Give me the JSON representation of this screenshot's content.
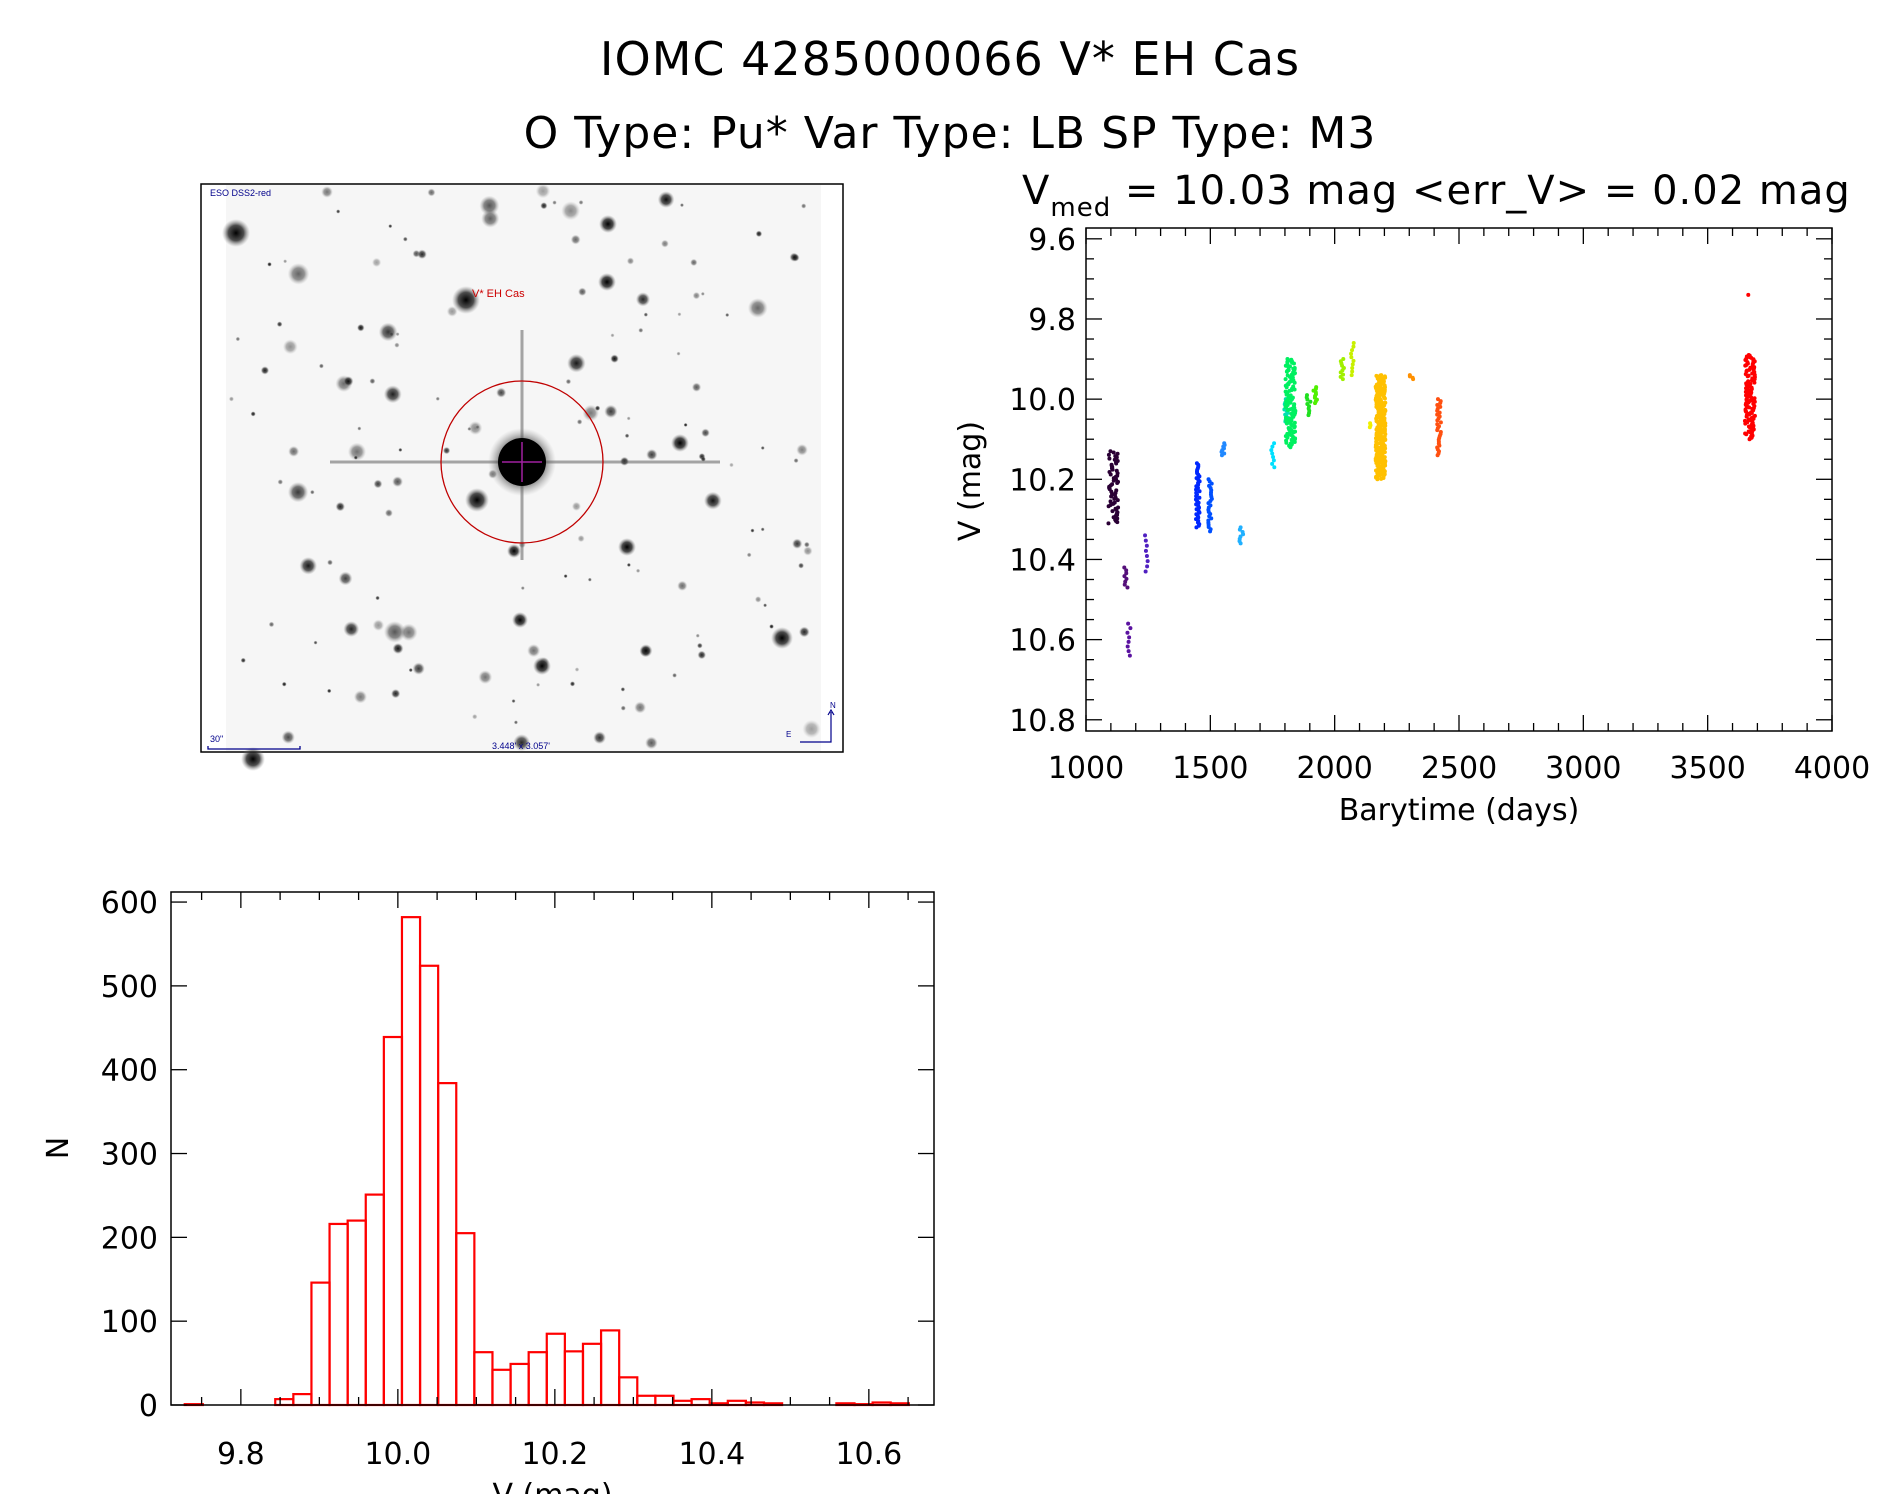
{
  "header": {
    "title_line1": "IOMC 4285000066    V* EH Cas",
    "title_line2": "O Type: Pu*   Var Type: LB   SP Type: M3"
  },
  "sky_image": {
    "survey_label": "ESO DSS2-red",
    "target_label": "V* EH Cas",
    "scale_bar_label": "30\"",
    "field_size_label": "3.448' x 3.057'",
    "north_label": "N",
    "east_label": "E",
    "label_color": "#00008b",
    "target_color": "#cc0000"
  },
  "chart_data": [
    {
      "type": "scatter",
      "title_parts": {
        "v": "V",
        "v_sub": "med",
        "rest": " = 10.03 mag <err_V> = 0.02 mag"
      },
      "xlabel": "Barytime (days)",
      "ylabel": "V (mag)",
      "xlim": [
        1000,
        4000
      ],
      "ylim": [
        10.828,
        9.573
      ],
      "y_inverted": true,
      "xticks": [
        1000,
        1500,
        2000,
        2500,
        3000,
        3500,
        4000
      ],
      "yticks": [
        "9.6",
        "9.8",
        "10.0",
        "10.2",
        "10.4",
        "10.6",
        "10.8"
      ],
      "grid": false,
      "color_by": "time (rainbow)",
      "clusters": [
        {
          "x": 1110,
          "ymin": 10.13,
          "ymax": 10.31,
          "n": 60,
          "color": "#2a0035"
        },
        {
          "x": 1162,
          "ymin": 10.42,
          "ymax": 10.47,
          "n": 8,
          "color": "#55107a"
        },
        {
          "x": 1173,
          "ymin": 10.56,
          "ymax": 10.64,
          "n": 8,
          "color": "#5a12a0"
        },
        {
          "x": 1245,
          "ymin": 10.34,
          "ymax": 10.43,
          "n": 8,
          "color": "#5020c0"
        },
        {
          "x": 1450,
          "ymin": 10.16,
          "ymax": 10.32,
          "n": 40,
          "color": "#0028ff"
        },
        {
          "x": 1500,
          "ymin": 10.2,
          "ymax": 10.33,
          "n": 25,
          "color": "#0050ff"
        },
        {
          "x": 1552,
          "ymin": 10.11,
          "ymax": 10.14,
          "n": 8,
          "color": "#2088ff"
        },
        {
          "x": 1625,
          "ymin": 10.32,
          "ymax": 10.36,
          "n": 8,
          "color": "#20b0ff"
        },
        {
          "x": 1750,
          "ymin": 10.11,
          "ymax": 10.17,
          "n": 8,
          "color": "#00e0ff"
        },
        {
          "x": 1805,
          "ymin": 10.0,
          "ymax": 10.06,
          "n": 15,
          "color": "#00e0b0"
        },
        {
          "x": 1822,
          "ymin": 9.9,
          "ymax": 10.12,
          "n": 120,
          "color": "#00f060"
        },
        {
          "x": 1895,
          "ymin": 9.99,
          "ymax": 10.04,
          "n": 10,
          "color": "#20e020"
        },
        {
          "x": 1922,
          "ymin": 9.97,
          "ymax": 10.01,
          "n": 10,
          "color": "#50f000"
        },
        {
          "x": 2032,
          "ymin": 9.9,
          "ymax": 9.95,
          "n": 10,
          "color": "#a0f000"
        },
        {
          "x": 2070,
          "ymin": 9.86,
          "ymax": 9.94,
          "n": 10,
          "color": "#c8f000"
        },
        {
          "x": 2140,
          "ymin": 10.06,
          "ymax": 10.07,
          "n": 3,
          "color": "#f0f000"
        },
        {
          "x": 2185,
          "ymin": 9.94,
          "ymax": 10.2,
          "n": 250,
          "color": "#ffc000"
        },
        {
          "x": 2310,
          "ymin": 9.94,
          "ymax": 9.95,
          "n": 4,
          "color": "#ff9000"
        },
        {
          "x": 2420,
          "ymin": 10.0,
          "ymax": 10.14,
          "n": 30,
          "color": "#ff5010"
        },
        {
          "x": 3668,
          "ymin": 9.74,
          "ymax": 9.74,
          "n": 1,
          "color": "#ff0000"
        },
        {
          "x": 3670,
          "ymin": 9.89,
          "ymax": 10.1,
          "n": 120,
          "color": "#ff0000"
        }
      ]
    },
    {
      "type": "bar",
      "subtype": "histogram",
      "xlabel": "V (mag)",
      "ylabel": "N",
      "xlim": [
        9.711,
        10.683
      ],
      "ylim": [
        0,
        612
      ],
      "xticks": [
        "9.8",
        "10.0",
        "10.2",
        "10.4",
        "10.6"
      ],
      "yticks": [
        "0",
        "100",
        "200",
        "300",
        "400",
        "500",
        "600"
      ],
      "grid": false,
      "color": "#ff0000",
      "bin_start": 9.7285,
      "bin_width": 0.02306,
      "counts": [
        1,
        0,
        0,
        0,
        0,
        7,
        13,
        146,
        216,
        220,
        251,
        439,
        582,
        524,
        384,
        205,
        63,
        42,
        49,
        63,
        85,
        64,
        73,
        89,
        33,
        11,
        11,
        5,
        7,
        2,
        5,
        3,
        2,
        0,
        0,
        0,
        2,
        1,
        3,
        2
      ]
    }
  ]
}
